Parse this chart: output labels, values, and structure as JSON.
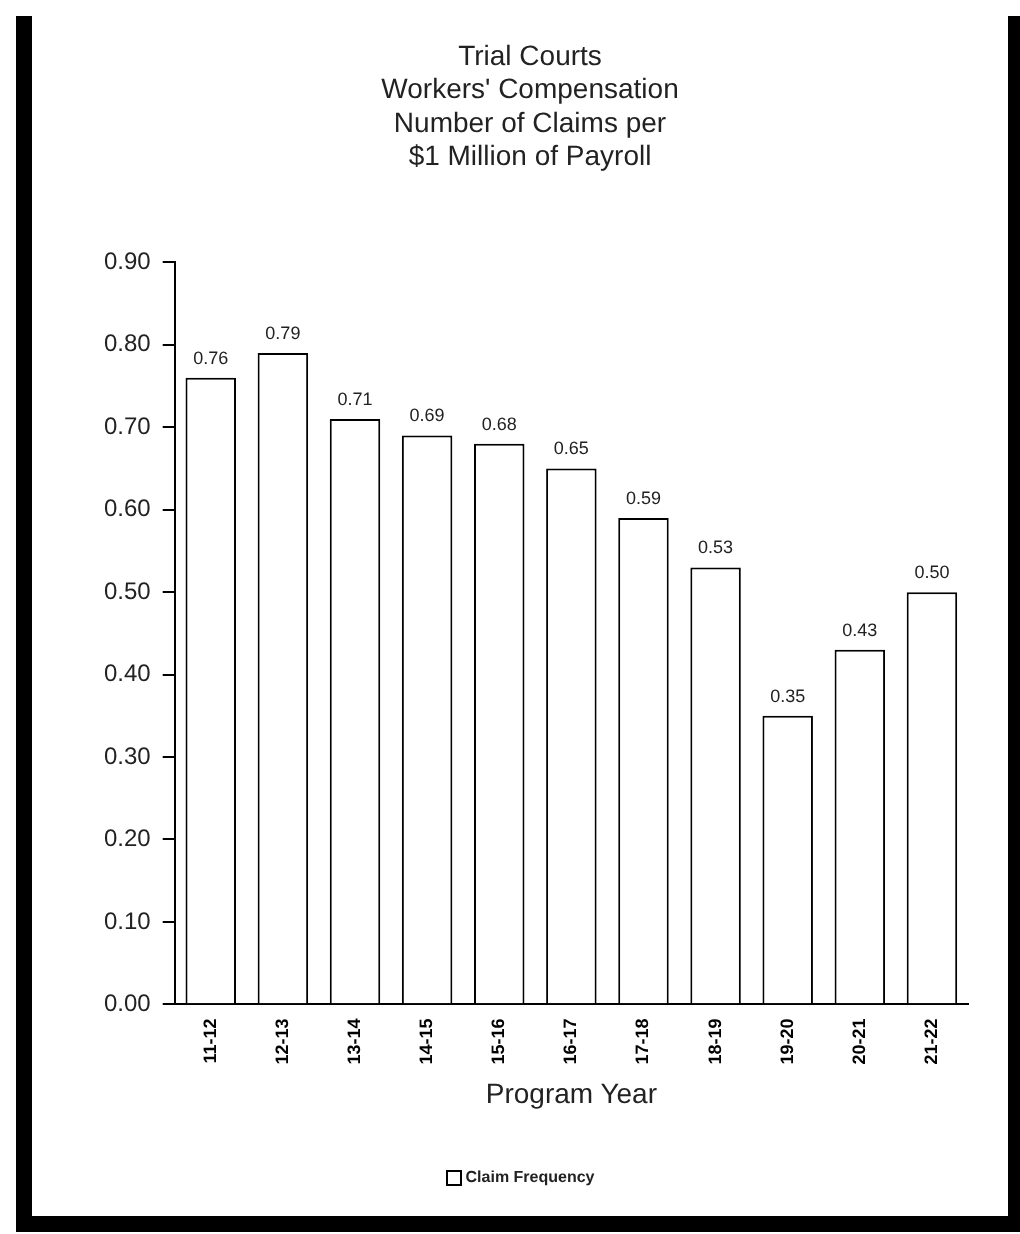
{
  "chart_data": {
    "type": "bar",
    "title": "Trial Courts\nWorkers' Compensation\nNumber of Claims per\n$1 Million of Payroll",
    "xlabel": "Program Year",
    "categories": [
      "11-12",
      "12-13",
      "13-14",
      "14-15",
      "15-16",
      "16-17",
      "17-18",
      "18-19",
      "19-20",
      "20-21",
      "21-22"
    ],
    "series": [
      {
        "name": "Claim Frequency",
        "color": "#ffffff",
        "values": [
          0.76,
          0.79,
          0.71,
          0.69,
          0.68,
          0.65,
          0.59,
          0.53,
          0.35,
          0.43,
          0.5
        ],
        "value_labels": [
          "0.76",
          "0.79",
          "0.71",
          "0.69",
          "0.68",
          "0.65",
          "0.59",
          "0.53",
          "0.35",
          "0.43",
          "0.50"
        ]
      }
    ],
    "ylim": [
      0,
      0.9
    ],
    "yticks": [
      {
        "value": 0,
        "label": "0.00"
      },
      {
        "value": 0.1,
        "label": "0.10"
      },
      {
        "value": 0.2,
        "label": "0.20"
      },
      {
        "value": 0.3,
        "label": "0.30"
      },
      {
        "value": 0.4,
        "label": "0.40"
      },
      {
        "value": 0.5,
        "label": "0.50"
      },
      {
        "value": 0.6,
        "label": "0.60"
      },
      {
        "value": 0.7,
        "label": "0.70"
      },
      {
        "value": 0.8,
        "label": "0.80"
      },
      {
        "value": 0.9,
        "label": "0.90"
      }
    ],
    "grid": false,
    "legend": "bottom"
  }
}
